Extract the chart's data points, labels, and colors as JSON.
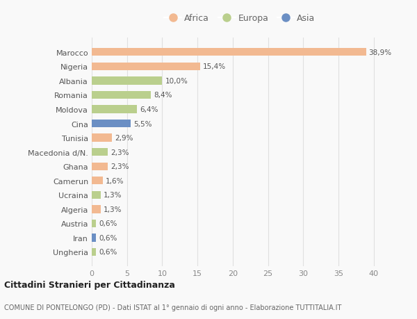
{
  "countries": [
    "Marocco",
    "Nigeria",
    "Albania",
    "Romania",
    "Moldova",
    "Cina",
    "Tunisia",
    "Macedonia d/N.",
    "Ghana",
    "Camerun",
    "Ucraina",
    "Algeria",
    "Austria",
    "Iran",
    "Ungheria"
  ],
  "values": [
    38.9,
    15.4,
    10.0,
    8.4,
    6.4,
    5.5,
    2.9,
    2.3,
    2.3,
    1.6,
    1.3,
    1.3,
    0.6,
    0.6,
    0.6
  ],
  "labels": [
    "38,9%",
    "15,4%",
    "10,0%",
    "8,4%",
    "6,4%",
    "5,5%",
    "2,9%",
    "2,3%",
    "2,3%",
    "1,6%",
    "1,3%",
    "1,3%",
    "0,6%",
    "0,6%",
    "0,6%"
  ],
  "continent": [
    "Africa",
    "Africa",
    "Europa",
    "Europa",
    "Europa",
    "Asia",
    "Africa",
    "Europa",
    "Africa",
    "Africa",
    "Europa",
    "Africa",
    "Europa",
    "Asia",
    "Europa"
  ],
  "colors": {
    "Africa": "#F2B991",
    "Europa": "#BACF8D",
    "Asia": "#6B8FC4"
  },
  "xlim": [
    0,
    42
  ],
  "xticks": [
    0,
    5,
    10,
    15,
    20,
    25,
    30,
    35,
    40
  ],
  "title": "Cittadini Stranieri per Cittadinanza",
  "subtitle": "COMUNE DI PONTELONGO (PD) - Dati ISTAT al 1° gennaio di ogni anno - Elaborazione TUTTITALIA.IT",
  "background_color": "#f9f9f9",
  "bar_height": 0.55,
  "grid_color": "#e0e0e0"
}
